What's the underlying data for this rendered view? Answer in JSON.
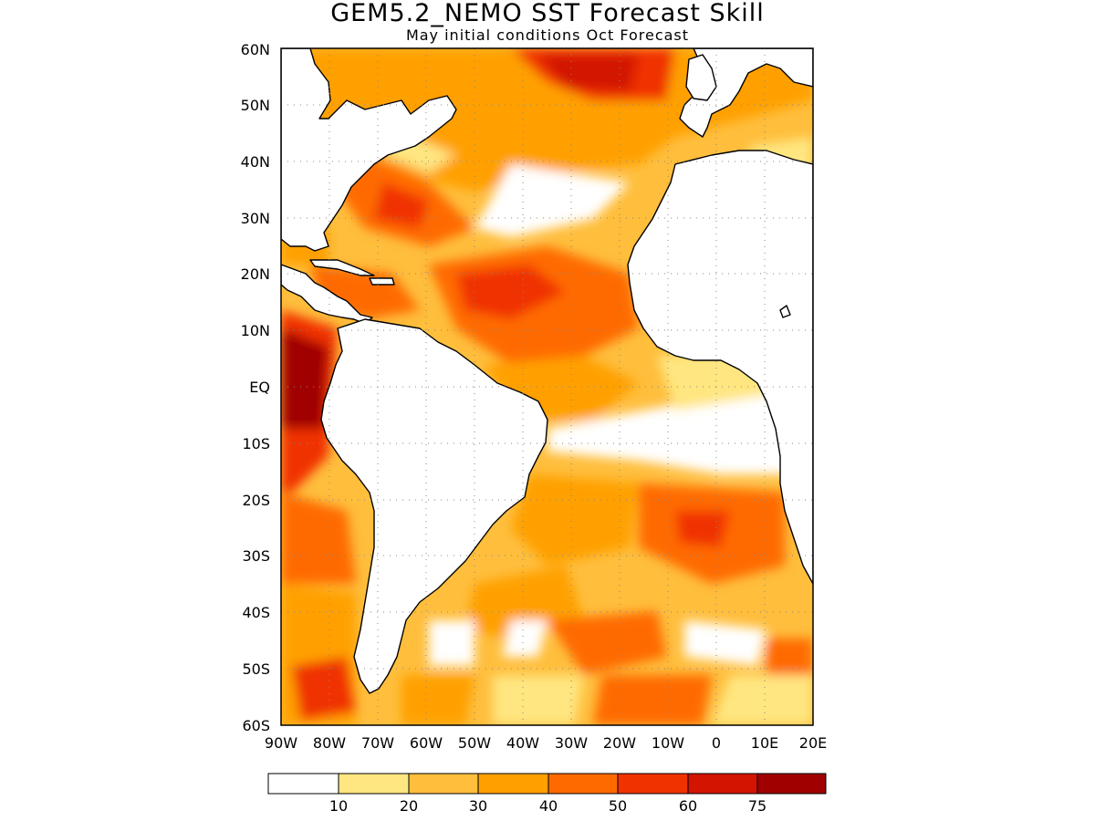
{
  "title": "GEM5.2_NEMO SST Forecast Skill",
  "subtitle": "May initial conditions  Oct Forecast",
  "map": {
    "region": "Atlantic",
    "grid": true,
    "lat_labels": [
      "60N",
      "50N",
      "40N",
      "30N",
      "20N",
      "10N",
      "EQ",
      "10S",
      "20S",
      "30S",
      "40S",
      "50S",
      "60S"
    ],
    "lon_labels": [
      "90W",
      "80W",
      "70W",
      "60W",
      "50W",
      "40W",
      "30W",
      "20W",
      "10W",
      "0",
      "10E",
      "20E"
    ],
    "lat_range": [
      -60,
      60
    ],
    "lon_range": [
      -90,
      20
    ]
  },
  "colorbar": {
    "colors": [
      "#ffffff",
      "#ffe680",
      "#ffbe3c",
      "#ffa000",
      "#ff6a00",
      "#f03200",
      "#d21400",
      "#a00000"
    ],
    "labels": [
      "10",
      "20",
      "30",
      "40",
      "50",
      "60",
      "75"
    ]
  }
}
